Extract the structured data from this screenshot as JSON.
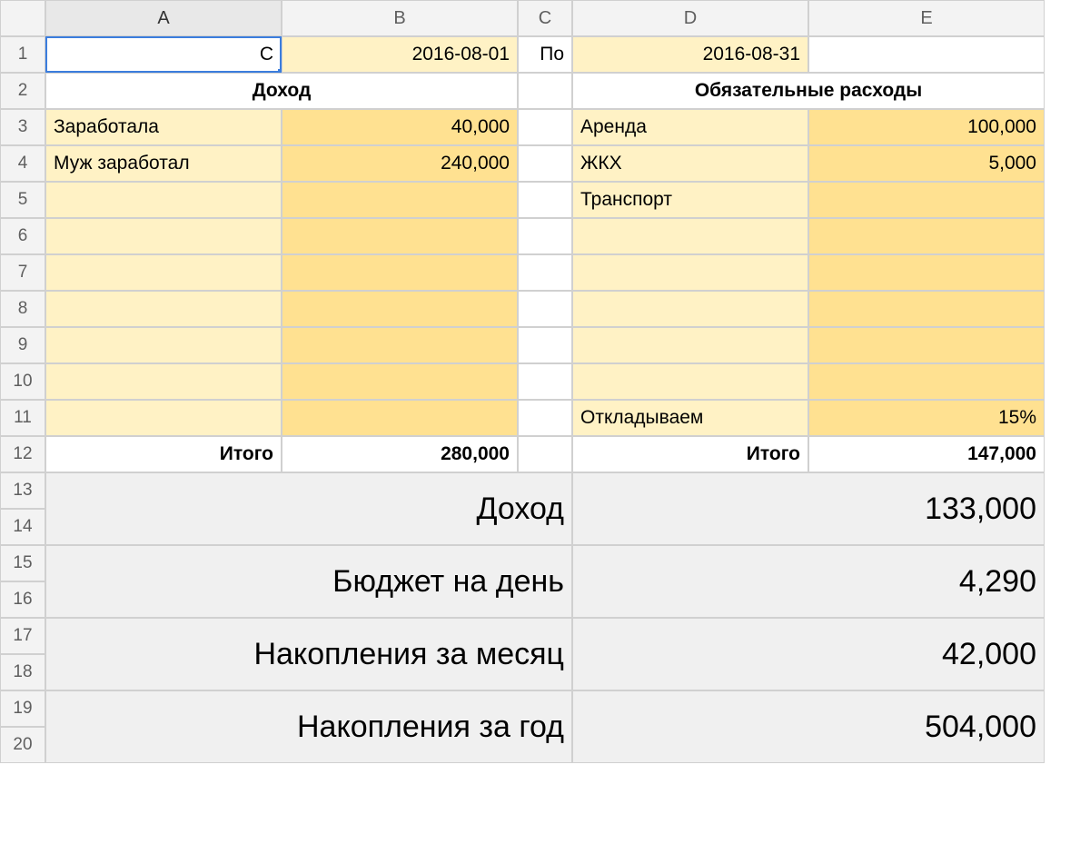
{
  "columns": [
    "A",
    "B",
    "C",
    "D",
    "E"
  ],
  "date_row": {
    "from_label": "С",
    "from_date": "2016-08-01",
    "to_label": "По",
    "to_date": "2016-08-31"
  },
  "section_headers": {
    "income": "Доход",
    "expenses": "Обязательные расходы"
  },
  "income_rows": [
    {
      "label": "Заработала",
      "value": "40,000"
    },
    {
      "label": "Муж заработал",
      "value": "240,000"
    },
    {
      "label": "",
      "value": ""
    },
    {
      "label": "",
      "value": ""
    },
    {
      "label": "",
      "value": ""
    },
    {
      "label": "",
      "value": ""
    },
    {
      "label": "",
      "value": ""
    },
    {
      "label": "",
      "value": ""
    },
    {
      "label": "",
      "value": ""
    }
  ],
  "expense_rows": [
    {
      "label": "Аренда",
      "value": "100,000"
    },
    {
      "label": "ЖКХ",
      "value": "5,000"
    },
    {
      "label": "Транспорт",
      "value": ""
    },
    {
      "label": "",
      "value": ""
    },
    {
      "label": "",
      "value": ""
    },
    {
      "label": "",
      "value": ""
    },
    {
      "label": "",
      "value": ""
    },
    {
      "label": "",
      "value": ""
    },
    {
      "label": "Откладываем",
      "value": "15%"
    }
  ],
  "totals": {
    "label": "Итого",
    "income_total": "280,000",
    "expense_total": "147,000"
  },
  "summary": [
    {
      "label": "Доход",
      "value": "133,000"
    },
    {
      "label": "Бюджет на день",
      "value": "4,290"
    },
    {
      "label": "Накопления за месяц",
      "value": "42,000"
    },
    {
      "label": "Накопления за год",
      "value": "504,000"
    }
  ],
  "colors": {
    "light_yellow": "#fff2c5",
    "med_yellow": "#ffe191",
    "gray": "#f0f0f0",
    "header_gray": "#f3f3f3",
    "selection_blue": "#3b7ddd",
    "border": "#d0d0d0"
  },
  "row_numbers_visible": 20,
  "selected_cell": "A1"
}
